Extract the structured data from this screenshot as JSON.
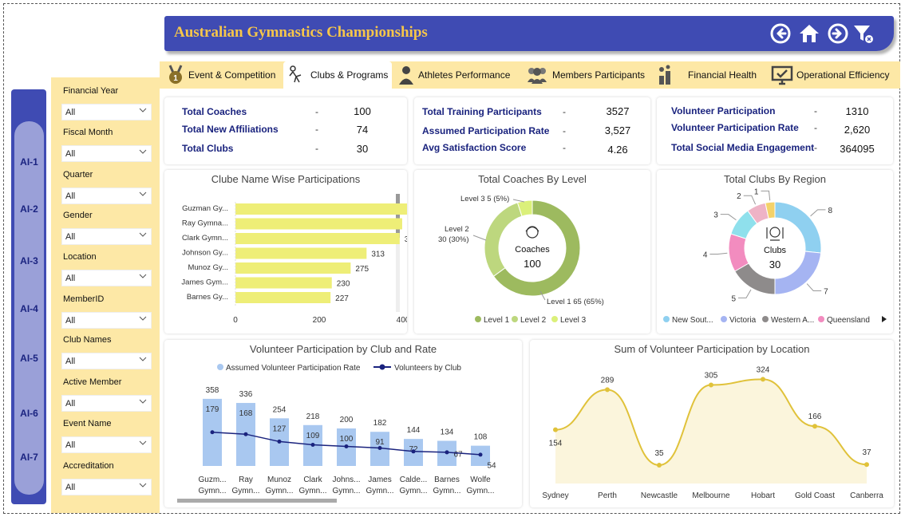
{
  "header": {
    "title": "Australian Gymnastics Championships",
    "icons": [
      "back-icon",
      "home-icon",
      "forward-icon",
      "clear-filter-icon"
    ]
  },
  "tabs": [
    {
      "label": "Event & Competition",
      "icon": "medal-icon"
    },
    {
      "label": "Clubs & Programs",
      "icon": "gymnast-icon",
      "active": true
    },
    {
      "label": "Athletes Performance",
      "icon": "athlete-icon"
    },
    {
      "label": "Members Participants",
      "icon": "group-icon"
    },
    {
      "label": "Financial Health",
      "icon": "bar-chart-icon"
    },
    {
      "label": "Operational Efficiency",
      "icon": "monitor-check-icon"
    }
  ],
  "ai_nav": [
    "AI-1",
    "AI-2",
    "AI-3",
    "AI-4",
    "AI-5",
    "AI-6",
    "AI-7"
  ],
  "filters": [
    {
      "label": "Financial Year",
      "value": "All"
    },
    {
      "label": "Fiscal Month",
      "value": "All"
    },
    {
      "label": "Quarter",
      "value": "All"
    },
    {
      "label": "Gender",
      "value": "All"
    },
    {
      "label": "Location",
      "value": "All"
    },
    {
      "label": "MemberID",
      "value": "All"
    },
    {
      "label": "Club Names",
      "value": "All"
    },
    {
      "label": "Active Member",
      "value": "All"
    },
    {
      "label": "Event Name",
      "value": "All"
    },
    {
      "label": "Accreditation",
      "value": "All"
    }
  ],
  "kpi_cards": [
    {
      "rows": [
        {
          "label": "Total Coaches",
          "dash": "-",
          "value": "100"
        },
        {
          "label": "Total New Affiliations",
          "dash": "-",
          "value": "74"
        },
        {
          "label": "Total Clubs",
          "dash": "-",
          "value": "30"
        }
      ]
    },
    {
      "rows": [
        {
          "label": "Total Training Participants",
          "dash": "-",
          "value": "3527"
        },
        {
          "label": "Assumed Participation Rate",
          "dash": "-",
          "value": "3,527"
        },
        {
          "label": "Avg Satisfaction Score",
          "dash": "-",
          "value": "4.26"
        }
      ]
    },
    {
      "rows": [
        {
          "label": "Volunteer Participation",
          "dash": "-",
          "value": "1310"
        },
        {
          "label": "Volunteer Participation Rate",
          "dash": "-",
          "value": "2,620"
        },
        {
          "label": "Total Social Media Engagement",
          "dash": "-",
          "value": "364095"
        }
      ]
    }
  ],
  "chart_data": [
    {
      "type": "bar",
      "orientation": "horizontal",
      "title": "Clube Name Wise Participations",
      "categories": [
        "Guzman Gy...",
        "Ray Gymna...",
        "Clark Gymn...",
        "Johnson Gy...",
        "Munoz Gy...",
        "James Gym...",
        "Barnes Gy..."
      ],
      "values": [
        435,
        398,
        392,
        313,
        275,
        230,
        227
      ],
      "xticks": [
        "0",
        "200",
        "400"
      ],
      "xlim": [
        0,
        480
      ],
      "color": "#eeee77"
    },
    {
      "type": "pie",
      "variant": "donut",
      "title": "Total Coaches By Level",
      "center_label": "Coaches",
      "center_value": "100",
      "slices": [
        {
          "name": "Level 1",
          "value": 65,
          "label": "Level 1 65 (65%)",
          "color": "#9dba5f"
        },
        {
          "name": "Level 2",
          "value": 30,
          "label": "Level 2 30 (30%)",
          "color": "#bdd77e"
        },
        {
          "name": "Level 3",
          "value": 5,
          "label": "Level 3 5 (5%)",
          "color": "#dbf07a"
        }
      ],
      "legend": [
        "Level 1",
        "Level 2",
        "Level 3"
      ]
    },
    {
      "type": "pie",
      "variant": "donut",
      "title": "Total Clubs By Region",
      "center_label": "Clubs",
      "center_value": "30",
      "slices": [
        {
          "value": 8,
          "label": "8",
          "color": "#8fd0f0"
        },
        {
          "value": 7,
          "label": "7",
          "color": "#a5b4f2"
        },
        {
          "value": 5,
          "label": "5",
          "color": "#8e8b8b"
        },
        {
          "value": 4,
          "label": "4",
          "color": "#f28cbf"
        },
        {
          "value": 3,
          "label": "3",
          "color": "#8fe0ec"
        },
        {
          "value": 2,
          "label": "2",
          "color": "#eeb3c6"
        },
        {
          "value": 1,
          "label": "1",
          "color": "#f4d26a"
        }
      ],
      "legend": [
        {
          "name": "New Sout...",
          "color": "#8fd0f0"
        },
        {
          "name": "Victoria",
          "color": "#a5b4f2"
        },
        {
          "name": "Western A...",
          "color": "#8e8b8b"
        },
        {
          "name": "Queensland",
          "color": "#f28cbf"
        }
      ]
    },
    {
      "type": "bar",
      "variant": "combo",
      "title": "Volunteer Participation by Club and Rate",
      "legend": [
        "Assumed Volunteer Participation Rate",
        "Volunteers by Club"
      ],
      "categories": [
        [
          "Guzm...",
          "Gymn..."
        ],
        [
          "Ray",
          "Gymn..."
        ],
        [
          "Munoz",
          "Gymn..."
        ],
        [
          "Clark",
          "Gymn..."
        ],
        [
          "Johns...",
          "Gymn..."
        ],
        [
          "James",
          "Gymn..."
        ],
        [
          "Calde...",
          "Gymn..."
        ],
        [
          "Barnes",
          "Gymn..."
        ],
        [
          "Wolfe",
          "Gymn..."
        ]
      ],
      "series": [
        {
          "name": "Assumed Volunteer Participation Rate",
          "values": [
            358,
            336,
            254,
            218,
            200,
            182,
            144,
            134,
            108
          ],
          "color": "#a9c8f0"
        },
        {
          "name": "Volunteers by Club",
          "values": [
            179,
            168,
            127,
            109,
            100,
            91,
            72,
            67,
            54
          ],
          "color": "#1a237e"
        }
      ],
      "ylim": [
        0,
        400
      ]
    },
    {
      "type": "area",
      "title": "Sum of Volunteer Participation by Location",
      "categories": [
        "Sydney",
        "Perth",
        "Newcastle",
        "Melbourne",
        "Hobart",
        "Gold Coast",
        "Canberra"
      ],
      "values": [
        154,
        289,
        35,
        305,
        324,
        166,
        37
      ],
      "color": "#e0c23a",
      "ylim": [
        0,
        360
      ]
    }
  ]
}
